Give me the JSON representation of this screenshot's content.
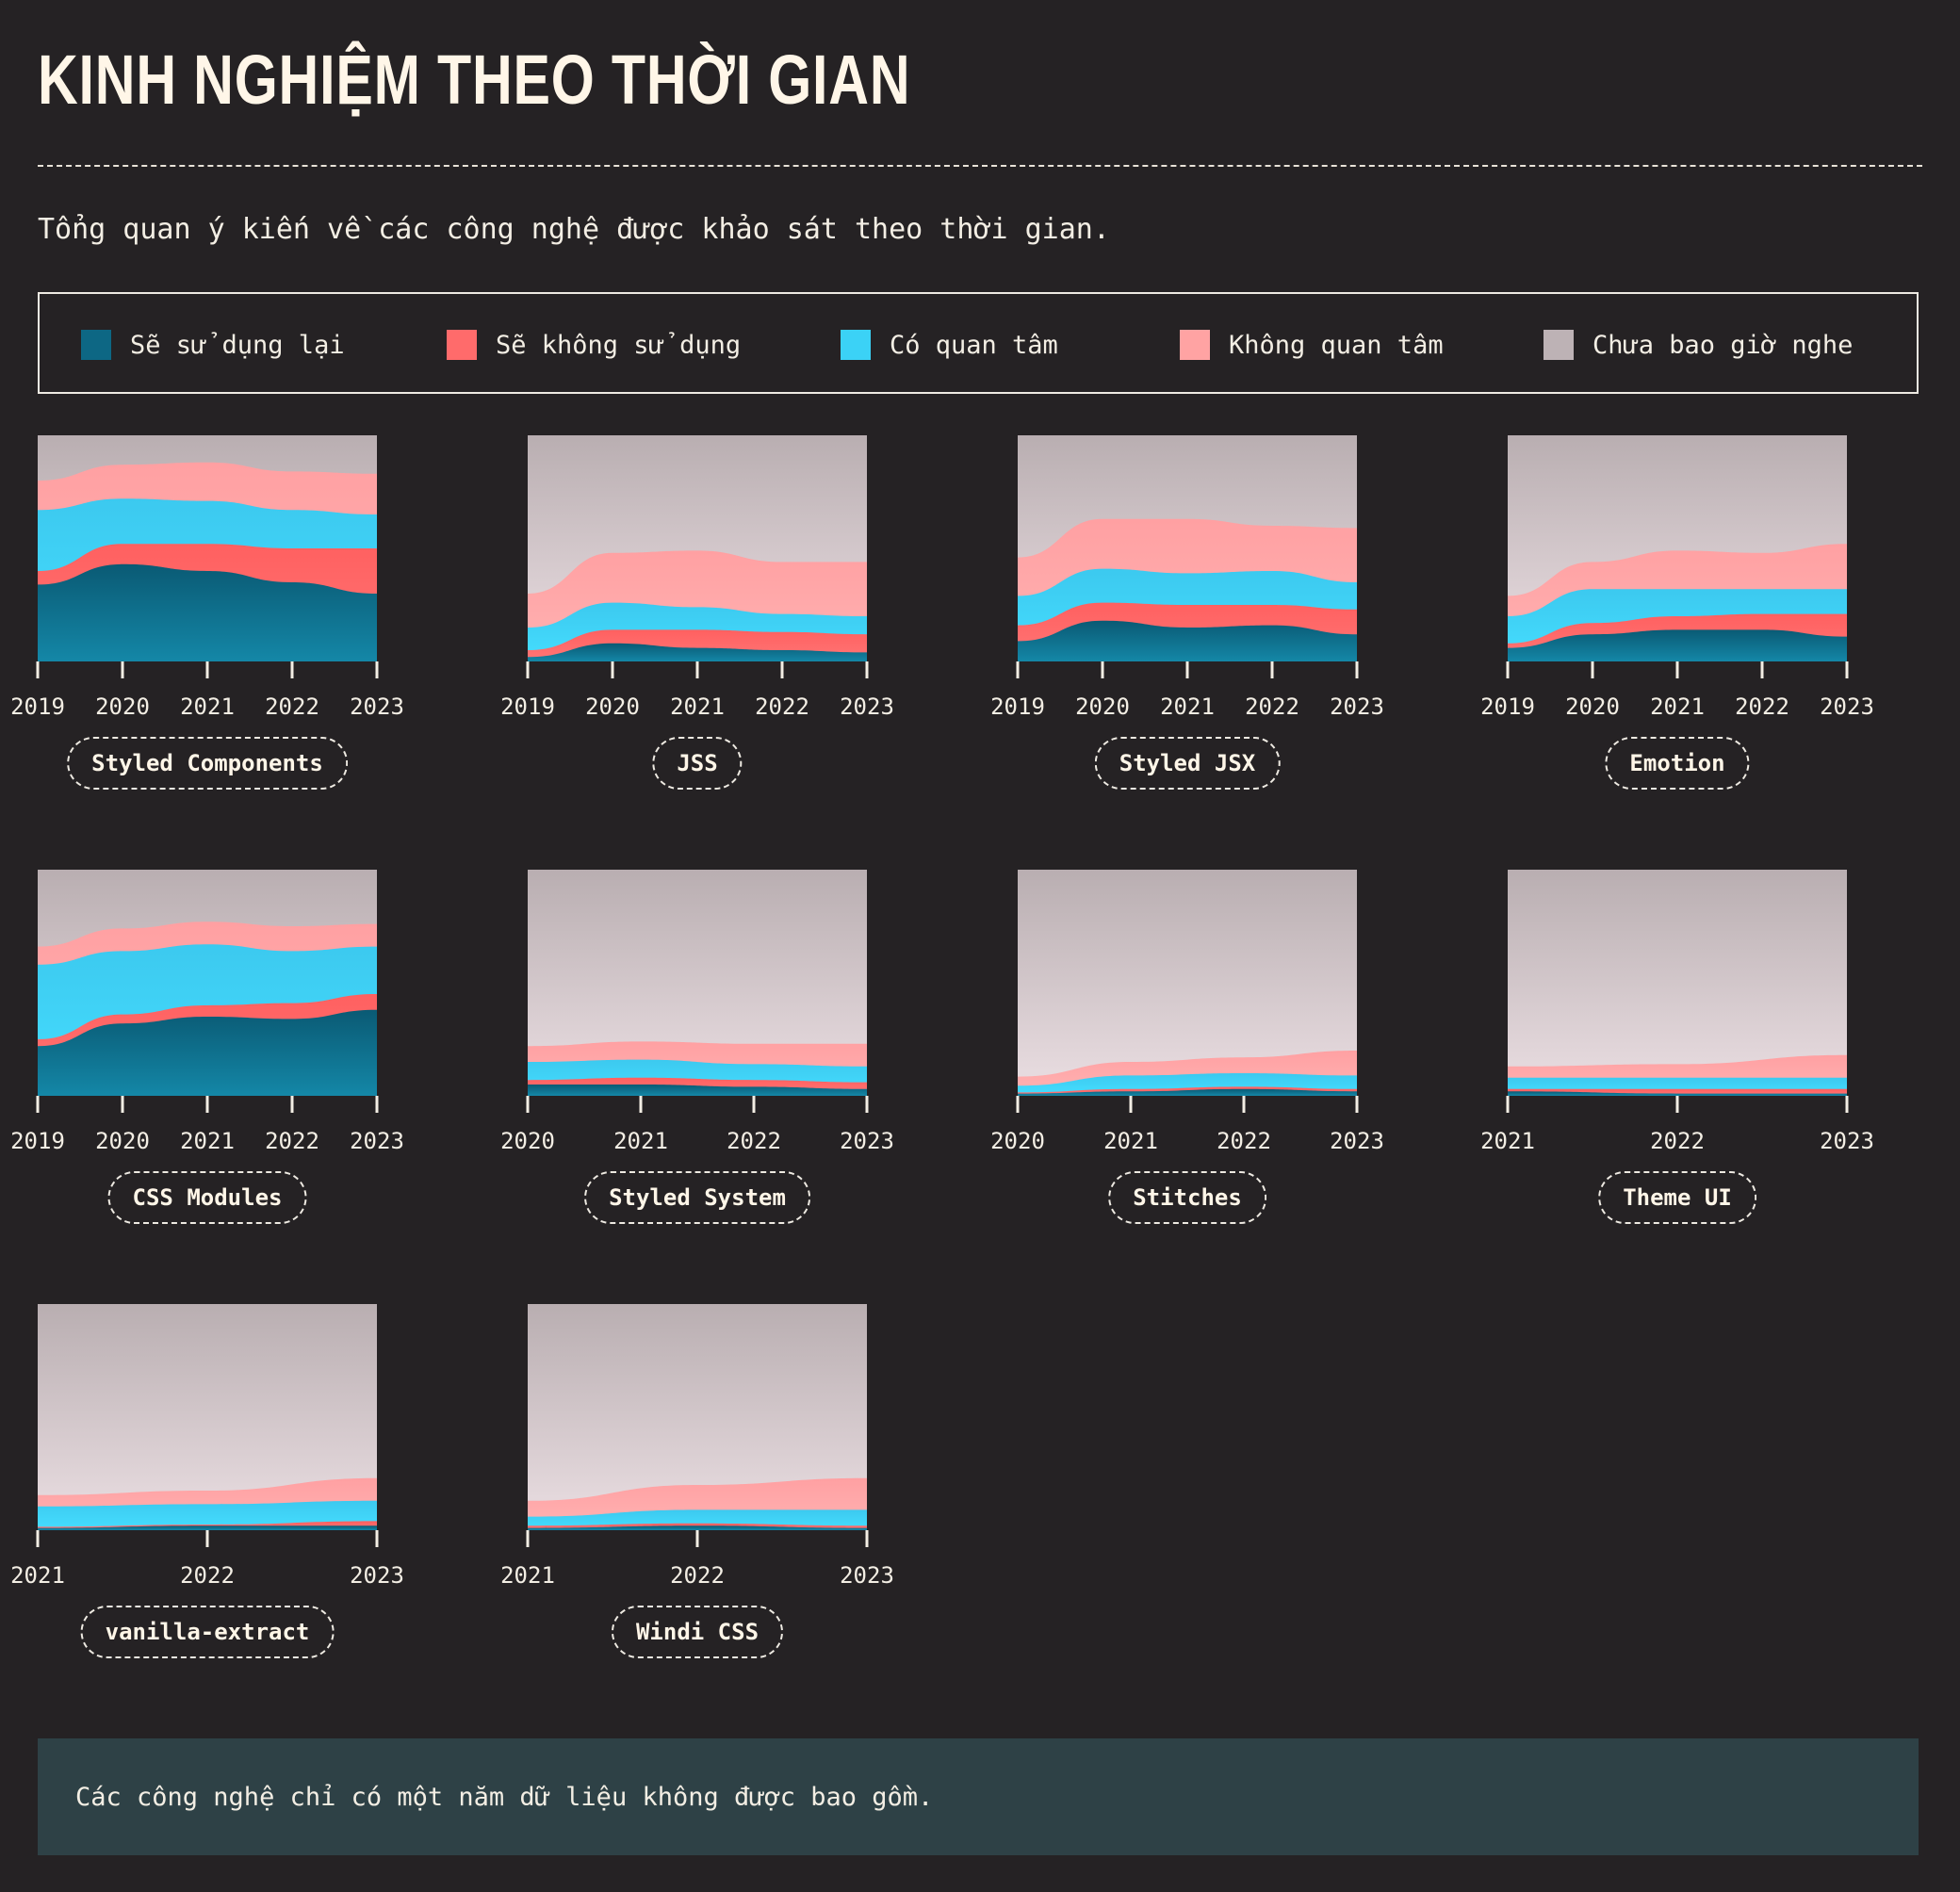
{
  "header": {
    "title": "KINH NGHIỆM THEO THỜI GIAN",
    "subtitle": "Tổng quan ý kiến về các công nghệ được khảo sát theo thời gian."
  },
  "legend": [
    {
      "label": "Sẽ sử dụng lại",
      "color": "#0d6784"
    },
    {
      "label": "Sẽ không sử dụng",
      "color": "#ff6b6b"
    },
    {
      "label": "Có quan tâm",
      "color": "#3bd2f6"
    },
    {
      "label": "Không quan tâm",
      "color": "#ffa3a3"
    },
    {
      "label": "Chưa bao giờ nghe",
      "color": "#bdb2b5"
    }
  ],
  "note": "Các công nghệ chỉ có một năm dữ liệu không được bao gồm.",
  "chart_data": [
    {
      "type": "area",
      "title": "Styled Components",
      "x": [
        "2019",
        "2020",
        "2021",
        "2022",
        "2023"
      ],
      "series": [
        {
          "name": "Sẽ sử dụng lại",
          "values": [
            34,
            43,
            40,
            35,
            30
          ]
        },
        {
          "name": "Sẽ không sử dụng",
          "values": [
            6,
            9,
            12,
            15,
            20
          ]
        },
        {
          "name": "Có quan tâm",
          "values": [
            27,
            20,
            19,
            17,
            15
          ]
        },
        {
          "name": "Không quan tâm",
          "values": [
            13,
            15,
            17,
            17,
            18
          ]
        },
        {
          "name": "Chưa bao giờ nghe",
          "values": [
            20,
            13,
            12,
            16,
            17
          ]
        }
      ]
    },
    {
      "type": "area",
      "title": "JSS",
      "x": [
        "2019",
        "2020",
        "2021",
        "2022",
        "2023"
      ],
      "series": [
        {
          "name": "Sẽ sử dụng lại",
          "values": [
            2,
            8,
            6,
            5,
            4
          ]
        },
        {
          "name": "Sẽ không sử dụng",
          "values": [
            3,
            6,
            8,
            8,
            8
          ]
        },
        {
          "name": "Có quan tâm",
          "values": [
            10,
            12,
            10,
            8,
            8
          ]
        },
        {
          "name": "Không quan tâm",
          "values": [
            15,
            22,
            25,
            23,
            24
          ]
        },
        {
          "name": "Chưa bao giờ nghe",
          "values": [
            70,
            52,
            51,
            56,
            56
          ]
        }
      ]
    },
    {
      "type": "area",
      "title": "Styled JSX",
      "x": [
        "2019",
        "2020",
        "2021",
        "2022",
        "2023"
      ],
      "series": [
        {
          "name": "Sẽ sử dụng lại",
          "values": [
            9,
            18,
            15,
            16,
            12
          ]
        },
        {
          "name": "Sẽ không sử dụng",
          "values": [
            7,
            8,
            10,
            9,
            11
          ]
        },
        {
          "name": "Có quan tâm",
          "values": [
            13,
            15,
            14,
            15,
            12
          ]
        },
        {
          "name": "Không quan tâm",
          "values": [
            17,
            22,
            24,
            20,
            24
          ]
        },
        {
          "name": "Chưa bao giờ nghe",
          "values": [
            54,
            37,
            37,
            40,
            41
          ]
        }
      ]
    },
    {
      "type": "area",
      "title": "Emotion",
      "x": [
        "2019",
        "2020",
        "2021",
        "2022",
        "2023"
      ],
      "series": [
        {
          "name": "Sẽ sử dụng lại",
          "values": [
            6,
            12,
            14,
            14,
            11
          ]
        },
        {
          "name": "Sẽ không sử dụng",
          "values": [
            2,
            5,
            6,
            7,
            10
          ]
        },
        {
          "name": "Có quan tâm",
          "values": [
            12,
            15,
            12,
            11,
            11
          ]
        },
        {
          "name": "Không quan tâm",
          "values": [
            9,
            12,
            17,
            16,
            20
          ]
        },
        {
          "name": "Chưa bao giờ nghe",
          "values": [
            71,
            56,
            51,
            52,
            48
          ]
        }
      ]
    },
    {
      "type": "area",
      "title": "CSS Modules",
      "x": [
        "2019",
        "2020",
        "2021",
        "2022",
        "2023"
      ],
      "series": [
        {
          "name": "Sẽ sử dụng lại",
          "values": [
            22,
            32,
            35,
            34,
            38
          ]
        },
        {
          "name": "Sẽ không sử dụng",
          "values": [
            3,
            4,
            5,
            7,
            7
          ]
        },
        {
          "name": "Có quan tâm",
          "values": [
            33,
            28,
            27,
            23,
            21
          ]
        },
        {
          "name": "Không quan tâm",
          "values": [
            8,
            10,
            10,
            11,
            10
          ]
        },
        {
          "name": "Chưa bao giờ nghe",
          "values": [
            34,
            26,
            23,
            25,
            24
          ]
        }
      ]
    },
    {
      "type": "area",
      "title": "Styled System",
      "x": [
        "2020",
        "2021",
        "2022",
        "2023"
      ],
      "series": [
        {
          "name": "Sẽ sử dụng lại",
          "values": [
            5,
            5,
            4,
            3
          ]
        },
        {
          "name": "Sẽ không sử dụng",
          "values": [
            2,
            3,
            3,
            3
          ]
        },
        {
          "name": "Có quan tâm",
          "values": [
            8,
            8,
            7,
            7
          ]
        },
        {
          "name": "Không quan tâm",
          "values": [
            7,
            8,
            9,
            10
          ]
        },
        {
          "name": "Chưa bao giờ nghe",
          "values": [
            78,
            76,
            77,
            77
          ]
        }
      ]
    },
    {
      "type": "area",
      "title": "Stitches",
      "x": [
        "2020",
        "2021",
        "2022",
        "2023"
      ],
      "series": [
        {
          "name": "Sẽ sử dụng lại",
          "values": [
            1,
            2,
            3,
            2
          ]
        },
        {
          "name": "Sẽ không sử dụng",
          "values": [
            0.5,
            1,
            1,
            1
          ]
        },
        {
          "name": "Có quan tâm",
          "values": [
            3,
            6,
            6,
            6
          ]
        },
        {
          "name": "Không quan tâm",
          "values": [
            4,
            6,
            7,
            11
          ]
        },
        {
          "name": "Chưa bao giờ nghe",
          "values": [
            91.5,
            85,
            83,
            80
          ]
        }
      ]
    },
    {
      "type": "area",
      "title": "Theme UI",
      "x": [
        "2021",
        "2022",
        "2023"
      ],
      "series": [
        {
          "name": "Sẽ sử dụng lại",
          "values": [
            2,
            1,
            1
          ]
        },
        {
          "name": "Sẽ không sử dụng",
          "values": [
            1,
            2,
            2
          ]
        },
        {
          "name": "Có quan tâm",
          "values": [
            5,
            5,
            5
          ]
        },
        {
          "name": "Không quan tâm",
          "values": [
            5,
            6,
            10
          ]
        },
        {
          "name": "Chưa bao giờ nghe",
          "values": [
            87,
            86,
            82
          ]
        }
      ]
    },
    {
      "type": "area",
      "title": "vanilla-extract",
      "x": [
        "2021",
        "2022",
        "2023"
      ],
      "series": [
        {
          "name": "Sẽ sử dụng lại",
          "values": [
            1,
            2,
            2
          ]
        },
        {
          "name": "Sẽ không sử dụng",
          "values": [
            0.5,
            0.5,
            2
          ]
        },
        {
          "name": "Có quan tâm",
          "values": [
            9,
            9,
            9
          ]
        },
        {
          "name": "Không quan tâm",
          "values": [
            5,
            6,
            10
          ]
        },
        {
          "name": "Chưa bao giờ nghe",
          "values": [
            84.5,
            82.5,
            77
          ]
        }
      ]
    },
    {
      "type": "area",
      "title": "Windi CSS",
      "x": [
        "2021",
        "2022",
        "2023"
      ],
      "series": [
        {
          "name": "Sẽ sử dụng lại",
          "values": [
            1,
            2,
            1
          ]
        },
        {
          "name": "Sẽ không sử dụng",
          "values": [
            1,
            1,
            1
          ]
        },
        {
          "name": "Có quan tâm",
          "values": [
            4,
            6,
            7
          ]
        },
        {
          "name": "Không quan tâm",
          "values": [
            7,
            11,
            14
          ]
        },
        {
          "name": "Chưa bao giờ nghe",
          "values": [
            87,
            80,
            77
          ]
        }
      ]
    }
  ]
}
